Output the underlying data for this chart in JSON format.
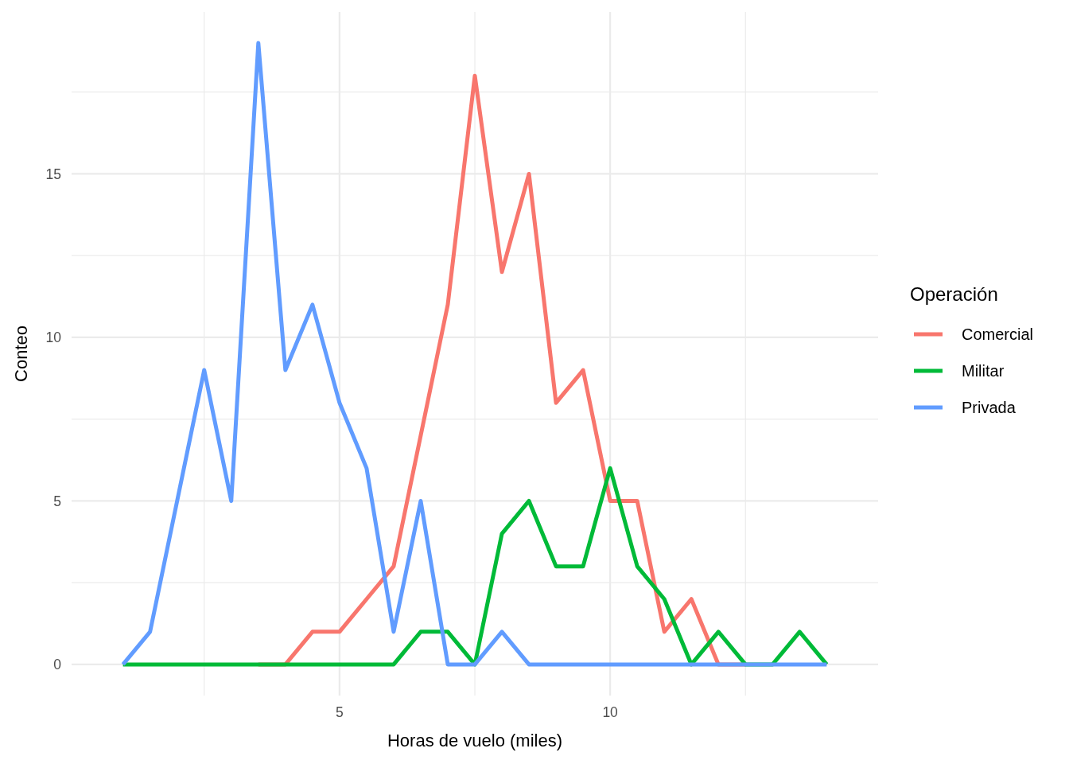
{
  "chart_data": {
    "type": "line",
    "xlabel": "Horas de vuelo (miles)",
    "ylabel": "Conteo",
    "legend_title": "Operación",
    "legend": "right",
    "grid": true,
    "line_style": "solid",
    "marker": "none",
    "x": [
      1,
      1.5,
      2,
      2.5,
      3,
      3.5,
      4,
      4.5,
      5,
      5.5,
      6,
      6.5,
      7,
      7.5,
      8,
      8.5,
      9,
      9.5,
      10,
      10.5,
      11,
      11.5,
      12,
      12.5,
      13,
      13.5,
      14
    ],
    "xlim": [
      0.05,
      14.95
    ],
    "xticks": [
      {
        "value": 2.5,
        "label": null
      },
      5,
      {
        "value": 7.5,
        "label": null
      },
      10,
      {
        "value": 12.5,
        "label": null
      }
    ],
    "ylim": [
      -0.95,
      19.95
    ],
    "yticks": [
      0,
      {
        "value": 2.5,
        "label": null
      },
      5,
      {
        "value": 7.5,
        "label": null
      },
      10,
      {
        "value": 12.5,
        "label": null
      },
      15,
      {
        "value": 17.5,
        "label": null
      }
    ],
    "series": [
      {
        "name": "Comercial",
        "color": "#f8766d",
        "values": [
          null,
          null,
          null,
          null,
          null,
          0,
          0,
          1,
          1,
          2,
          3,
          7,
          11,
          18,
          12,
          15,
          8,
          9,
          5,
          5,
          1,
          2,
          0,
          0,
          null,
          null,
          null
        ]
      },
      {
        "name": "Militar",
        "color": "#00ba38",
        "values": [
          0,
          0,
          0,
          0,
          0,
          0,
          0,
          0,
          0,
          0,
          0,
          1,
          1,
          0,
          4,
          5,
          3,
          3,
          6,
          3,
          2,
          0,
          1,
          0,
          0,
          1,
          0
        ]
      },
      {
        "name": "Privada",
        "color": "#619cff",
        "values": [
          0,
          1,
          5,
          9,
          5,
          19,
          9,
          11,
          8,
          6,
          1,
          5,
          0,
          0,
          1,
          0,
          0,
          0,
          0,
          0,
          0,
          0,
          0,
          0,
          0,
          0,
          0
        ]
      }
    ]
  }
}
